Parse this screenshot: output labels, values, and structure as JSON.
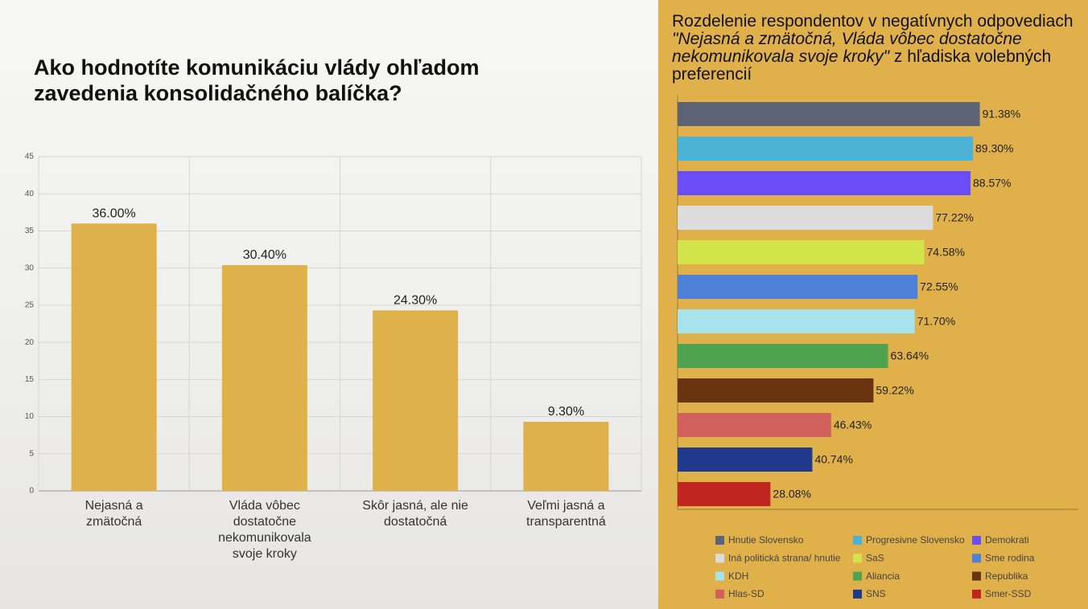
{
  "chart_data": [
    {
      "type": "bar",
      "title": "Ako hodnotíte komunikáciu vlády ohľadom zavedenia konsolidačného balíčka?",
      "categories": [
        "Nejasná a zmätočná",
        "Vláda vôbec dostatočne nekomunikovala svoje kroky",
        "Skôr jasná, ale nie dostatočná",
        "Veľmi jasná a transparentná"
      ],
      "values": [
        36,
        30.4,
        24.3,
        9.3
      ],
      "value_labels": [
        "36.00%",
        "30.40%",
        "24.30%",
        "9.30%"
      ],
      "color": "#deb14b",
      "ylim": [
        0,
        45
      ],
      "yticks": [
        0,
        5,
        10,
        15,
        20,
        25,
        30,
        35,
        40,
        45
      ],
      "grid": true
    },
    {
      "type": "hbar",
      "title": [
        "Rozdelenie respondentov v negatívnych odpovediach ",
        "\"Nejasná a zmätočná, Vláda vôbec dostatočne nekomunikovala svoje kroky\"",
        " z hľadiska volebných preferencií"
      ],
      "categories": [
        "Hnutie Slovensko",
        "Progresivne Slovensko",
        "Demokrati",
        "Iná politická strana/ hnutie",
        "SaS",
        "Sme rodina",
        "KDH",
        "Aliancia",
        "Republika",
        "Hlas-SD",
        "SNS",
        "Smer-SSD"
      ],
      "values": [
        91.38,
        89.3,
        88.57,
        77.22,
        74.58,
        72.55,
        71.7,
        63.64,
        59.22,
        46.43,
        40.74,
        28.08
      ],
      "value_labels": [
        "91.38%",
        "89.30%",
        "88.57%",
        "77.22%",
        "74.58%",
        "72.55%",
        "71.70%",
        "63.64%",
        "59.22%",
        "46.43%",
        "40.74%",
        "28.08%"
      ],
      "colors": [
        "#5b6374",
        "#4db3d6",
        "#6a4df5",
        "#dcdcdc",
        "#d3e34a",
        "#4d80d6",
        "#a6e3ea",
        "#4fa24f",
        "#6a3410",
        "#d0605c",
        "#1f3a8a",
        "#c0261f"
      ],
      "xlim": [
        0,
        100
      ]
    }
  ]
}
